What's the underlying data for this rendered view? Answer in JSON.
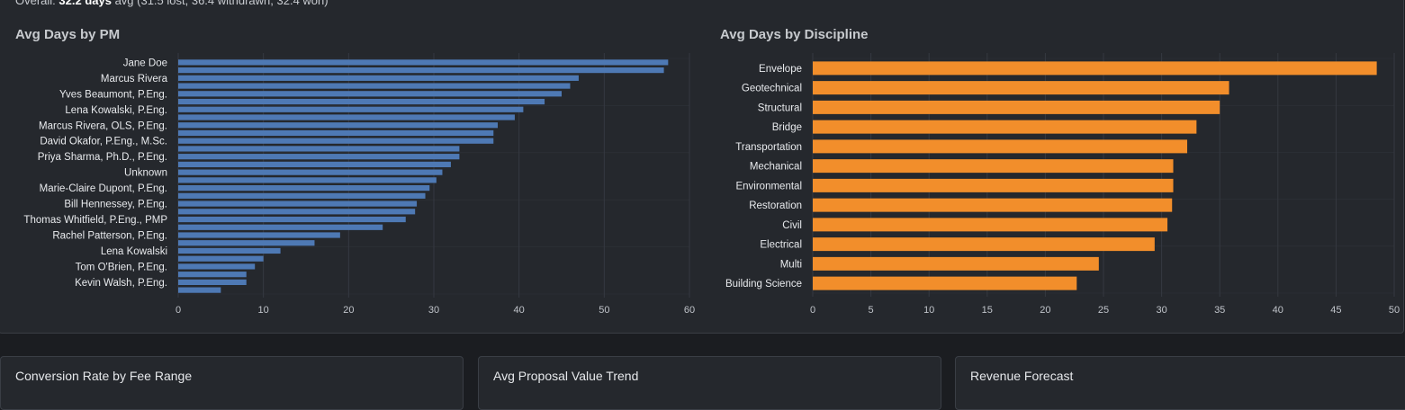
{
  "summary": {
    "prefix": "Overall: ",
    "value": "32.2 days",
    "suffix": " avg (31.5 lost, 36.4 withdrawn, 32.4 won)"
  },
  "colors": {
    "pm_bar": "#4e79b4",
    "discipline_bar": "#f28e2b",
    "grid": "#353941",
    "label": "#e8eaed",
    "tick": "#c0c4ca"
  },
  "chart_data": [
    {
      "type": "bar",
      "orientation": "horizontal",
      "title": "Avg Days by PM",
      "categories": [
        "Jane Doe",
        "",
        "Marcus Rivera",
        "",
        "Yves Beaumont, P.Eng.",
        "",
        "Lena Kowalski, P.Eng.",
        "",
        "Marcus Rivera, OLS, P.Eng.",
        "",
        "David Okafor, P.Eng., M.Sc.",
        "",
        "Priya Sharma, Ph.D., P.Eng.",
        "",
        "Unknown",
        "",
        "Marie-Claire Dupont, P.Eng.",
        "",
        "Bill Hennessey, P.Eng.",
        "",
        "Thomas Whitfield, P.Eng., PMP",
        "",
        "Rachel Patterson, P.Eng.",
        "",
        "Lena Kowalski",
        "",
        "Tom O'Brien, P.Eng.",
        "",
        "Kevin Walsh, P.Eng.",
        ""
      ],
      "values": [
        57.5,
        57.0,
        47.0,
        46.0,
        45.0,
        43.0,
        40.5,
        39.5,
        37.5,
        37.0,
        37.0,
        33.0,
        33.0,
        32.0,
        31.0,
        30.3,
        29.5,
        29.0,
        28.0,
        27.8,
        26.7,
        24.0,
        19.0,
        16.0,
        12.0,
        10.0,
        9.0,
        8.0,
        8.0,
        5.0
      ],
      "xlim": [
        0,
        60
      ],
      "xticks": [
        "0",
        "10",
        "20",
        "30",
        "40",
        "50",
        "60"
      ],
      "grid": true
    },
    {
      "type": "bar",
      "orientation": "horizontal",
      "title": "Avg Days by Discipline",
      "categories": [
        "Envelope",
        "Geotechnical",
        "Structural",
        "Bridge",
        "Transportation",
        "Mechanical",
        "Environmental",
        "Restoration",
        "Civil",
        "Electrical",
        "Multi",
        "Building Science"
      ],
      "values": [
        48.5,
        35.8,
        35.0,
        33.0,
        32.2,
        31.0,
        31.0,
        30.9,
        30.5,
        29.4,
        24.6,
        22.7
      ],
      "xlim": [
        0,
        50
      ],
      "xticks": [
        "0",
        "5",
        "10",
        "15",
        "20",
        "25",
        "30",
        "35",
        "40",
        "45",
        "50"
      ],
      "grid": true
    }
  ],
  "cards": [
    {
      "title": "Conversion Rate by Fee Range"
    },
    {
      "title": "Avg Proposal Value Trend"
    },
    {
      "title": "Revenue Forecast"
    }
  ]
}
